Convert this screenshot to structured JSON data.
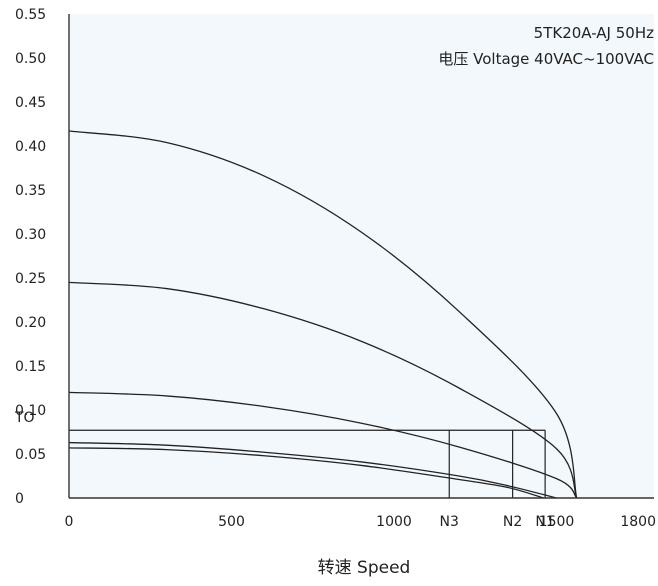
{
  "chart_data": {
    "type": "line",
    "title_lines": [
      "5TK20A-AJ  50Hz",
      "电压 Voltage 40VAC~100VAC"
    ],
    "xlabel": "转速 Speed",
    "ylabel": "",
    "xlim": [
      0,
      1800
    ],
    "ylim": [
      0,
      0.55
    ],
    "x_ticks": [
      {
        "value": 0,
        "label": "0"
      },
      {
        "value": 500,
        "label": "500"
      },
      {
        "value": 1000,
        "label": "1000"
      },
      {
        "value": 1500,
        "label": "1500"
      },
      {
        "value": 1800,
        "label": "1800"
      }
    ],
    "x_markers": [
      {
        "value": 1170,
        "label": "N3"
      },
      {
        "value": 1365,
        "label": "N2"
      },
      {
        "value": 1465,
        "label": "N1"
      }
    ],
    "y_ticks": [
      {
        "value": 0,
        "label": "0"
      },
      {
        "value": 0.05,
        "label": "0.05"
      },
      {
        "value": 0.1,
        "label": "0.10"
      },
      {
        "value": 0.15,
        "label": "0.15"
      },
      {
        "value": 0.2,
        "label": "0.20"
      },
      {
        "value": 0.25,
        "label": "0.25"
      },
      {
        "value": 0.3,
        "label": "0.30"
      },
      {
        "value": 0.35,
        "label": "0.35"
      },
      {
        "value": 0.4,
        "label": "0.40"
      },
      {
        "value": 0.45,
        "label": "0.45"
      },
      {
        "value": 0.5,
        "label": "0.50"
      },
      {
        "value": 0.55,
        "label": "0.55"
      }
    ],
    "y_marker": {
      "value": 0.077,
      "label": "TO"
    },
    "series": [
      {
        "x": [
          0,
          300,
          600,
          900,
          1200,
          1500,
          1562
        ],
        "y": [
          0.417,
          0.404,
          0.366,
          0.302,
          0.212,
          0.096,
          0
        ]
      },
      {
        "x": [
          0,
          300,
          600,
          900,
          1200,
          1500,
          1562
        ],
        "y": [
          0.245,
          0.238,
          0.215,
          0.178,
          0.125,
          0.056,
          0
        ]
      },
      {
        "x": [
          0,
          300,
          600,
          900,
          1200,
          1500,
          1562
        ],
        "y": [
          0.12,
          0.116,
          0.104,
          0.085,
          0.058,
          0.022,
          0
        ]
      },
      {
        "x": [
          0,
          300,
          600,
          900,
          1200,
          1350,
          1500
        ],
        "y": [
          0.063,
          0.06,
          0.052,
          0.041,
          0.025,
          0.014,
          0
        ]
      },
      {
        "x": [
          0,
          300,
          600,
          900,
          1200,
          1350,
          1460
        ],
        "y": [
          0.057,
          0.055,
          0.048,
          0.037,
          0.021,
          0.012,
          0
        ]
      }
    ],
    "operating_lines": [
      {
        "x": 1170,
        "y": 0.077
      },
      {
        "x": 1365,
        "y": 0.077
      },
      {
        "x": 1465,
        "y": 0.077
      }
    ],
    "colors": {
      "plot_background": "#f3f8fc",
      "axis": "#333333",
      "curve": "#222222",
      "text": "#222222"
    },
    "grid": false,
    "legend": "none"
  }
}
